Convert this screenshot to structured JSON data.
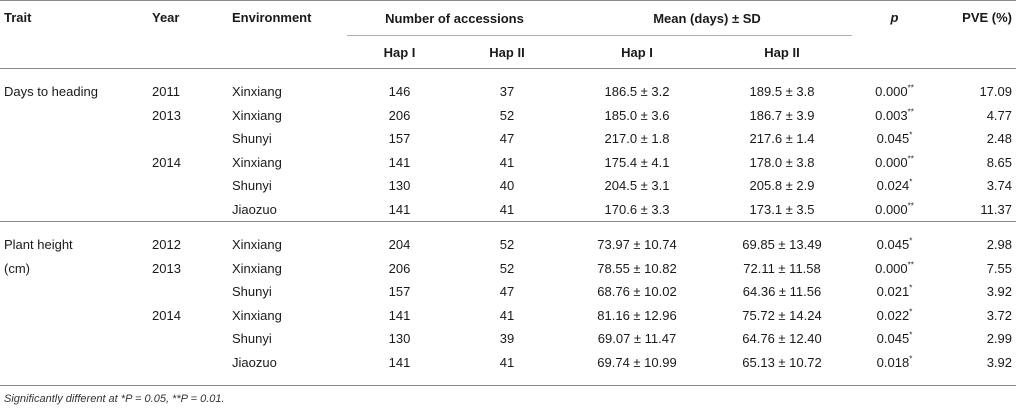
{
  "headers": {
    "trait": "Trait",
    "year": "Year",
    "environment": "Environment",
    "num_accessions": "Number of accessions",
    "mean": "Mean (days) ± SD",
    "p": "p",
    "pve": "PVE (%)",
    "hap1": "Hap I",
    "hap2": "Hap II"
  },
  "sections": [
    {
      "trait_line1": "Days to heading",
      "trait_line2": "",
      "rows": [
        {
          "year": "2011",
          "env": "Xinxiang",
          "n1": "146",
          "n2": "37",
          "m1": "186.5 ± 3.2",
          "m2": "189.5 ± 3.8",
          "p": "0.000",
          "sig": "**",
          "pve": "17.09"
        },
        {
          "year": "2013",
          "env": "Xinxiang",
          "n1": "206",
          "n2": "52",
          "m1": "185.0 ± 3.6",
          "m2": "186.7 ± 3.9",
          "p": "0.003",
          "sig": "**",
          "pve": "4.77"
        },
        {
          "year": "",
          "env": "Shunyi",
          "n1": "157",
          "n2": "47",
          "m1": "217.0 ± 1.8",
          "m2": "217.6 ± 1.4",
          "p": "0.045",
          "sig": "*",
          "pve": "2.48"
        },
        {
          "year": "2014",
          "env": "Xinxiang",
          "n1": "141",
          "n2": "41",
          "m1": "175.4 ± 4.1",
          "m2": "178.0 ± 3.8",
          "p": "0.000",
          "sig": "**",
          "pve": "8.65"
        },
        {
          "year": "",
          "env": "Shunyi",
          "n1": "130",
          "n2": "40",
          "m1": "204.5 ± 3.1",
          "m2": "205.8 ± 2.9",
          "p": "0.024",
          "sig": "*",
          "pve": "3.74"
        },
        {
          "year": "",
          "env": "Jiaozuo",
          "n1": "141",
          "n2": "41",
          "m1": "170.6 ± 3.3",
          "m2": "173.1 ± 3.5",
          "p": "0.000",
          "sig": "**",
          "pve": "11.37"
        }
      ]
    },
    {
      "trait_line1": "Plant height",
      "trait_line2": "(cm)",
      "rows": [
        {
          "year": "2012",
          "env": "Xinxiang",
          "n1": "204",
          "n2": "52",
          "m1": "73.97 ± 10.74",
          "m2": "69.85 ± 13.49",
          "p": "0.045",
          "sig": "*",
          "pve": "2.98"
        },
        {
          "year": "2013",
          "env": "Xinxiang",
          "n1": "206",
          "n2": "52",
          "m1": "78.55 ± 10.82",
          "m2": "72.11 ± 11.58",
          "p": "0.000",
          "sig": "**",
          "pve": "7.55"
        },
        {
          "year": "",
          "env": "Shunyi",
          "n1": "157",
          "n2": "47",
          "m1": "68.76 ± 10.02",
          "m2": "64.36 ± 11.56",
          "p": "0.021",
          "sig": "*",
          "pve": "3.92"
        },
        {
          "year": "2014",
          "env": "Xinxiang",
          "n1": "141",
          "n2": "41",
          "m1": "81.16 ± 12.96",
          "m2": "75.72 ± 14.24",
          "p": "0.022",
          "sig": "*",
          "pve": "3.72"
        },
        {
          "year": "",
          "env": "Shunyi",
          "n1": "130",
          "n2": "39",
          "m1": "69.07 ± 11.47",
          "m2": "64.76 ± 12.40",
          "p": "0.045",
          "sig": "*",
          "pve": "2.99"
        },
        {
          "year": "",
          "env": "Jiaozuo",
          "n1": "141",
          "n2": "41",
          "m1": "69.74 ± 10.99",
          "m2": "65.13 ± 10.72",
          "p": "0.018",
          "sig": "*",
          "pve": "3.92"
        }
      ]
    }
  ],
  "footnote": "Significantly different at *P = 0.05, **P = 0.01."
}
